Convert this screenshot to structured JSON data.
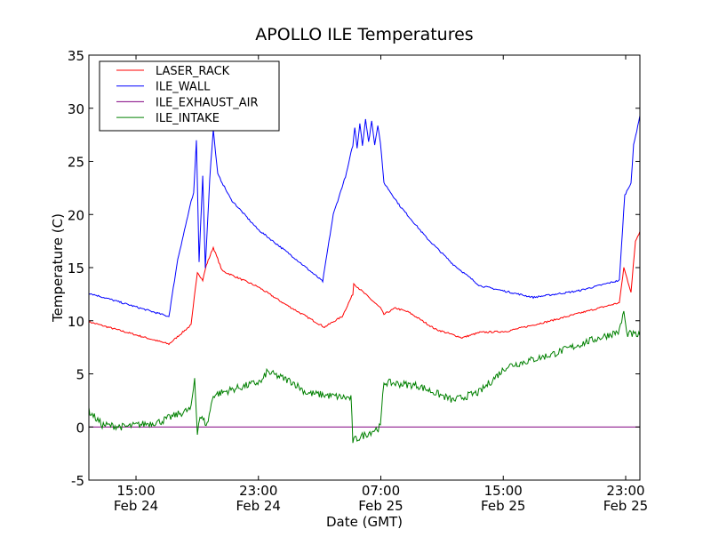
{
  "chart_data": {
    "type": "line",
    "title": "APOLLO ILE Temperatures",
    "xlabel": "Date (GMT)",
    "ylabel": "Temperature (C)",
    "x_units": "hours since Feb 24 00:00 GMT",
    "xlim": [
      11.92,
      47.93
    ],
    "ylim": [
      -5,
      35
    ],
    "yticks": [
      -5,
      0,
      5,
      10,
      15,
      20,
      25,
      30,
      35
    ],
    "ytick_labels": [
      "-5",
      "0",
      "5",
      "10",
      "15",
      "20",
      "25",
      "30",
      "35"
    ],
    "xticks": [
      15,
      23,
      31,
      39,
      47
    ],
    "xtick_labels": [
      {
        "time": "15:00",
        "date": "Feb 24"
      },
      {
        "time": "23:00",
        "date": "Feb 24"
      },
      {
        "time": "07:00",
        "date": "Feb 25"
      },
      {
        "time": "15:00",
        "date": "Feb 25"
      },
      {
        "time": "23:00",
        "date": "Feb 25"
      }
    ],
    "grid": false,
    "legend_position": "top-left",
    "series": [
      {
        "name": "LASER_RACK",
        "color": "#ff0000",
        "noise": 0.08,
        "points": [
          [
            11.92,
            9.9
          ],
          [
            17.15,
            7.8
          ],
          [
            18.6,
            9.6
          ],
          [
            19.01,
            14.6
          ],
          [
            19.36,
            13.8
          ],
          [
            19.59,
            15.2
          ],
          [
            20.05,
            16.9
          ],
          [
            20.63,
            14.7
          ],
          [
            22.96,
            13.2
          ],
          [
            24.7,
            11.6
          ],
          [
            27.31,
            9.4
          ],
          [
            28.47,
            10.4
          ],
          [
            29.17,
            12.5
          ],
          [
            29.23,
            13.5
          ],
          [
            30.97,
            11.2
          ],
          [
            31.2,
            10.6
          ],
          [
            31.96,
            11.2
          ],
          [
            32.83,
            10.8
          ],
          [
            34.57,
            9.2
          ],
          [
            36.31,
            8.4
          ],
          [
            37.47,
            8.9
          ],
          [
            39.22,
            9.0
          ],
          [
            42.12,
            10.0
          ],
          [
            46.59,
            11.7
          ],
          [
            46.88,
            15.0
          ],
          [
            47.35,
            12.7
          ],
          [
            47.64,
            17.5
          ],
          [
            47.93,
            18.4
          ]
        ]
      },
      {
        "name": "ILE_WALL",
        "color": "#0000ff",
        "noise": 0.08,
        "points": [
          [
            11.92,
            12.6
          ],
          [
            17.15,
            10.4
          ],
          [
            17.73,
            15.8
          ],
          [
            18.6,
            21.2
          ],
          [
            18.77,
            22.0
          ],
          [
            18.95,
            27.0
          ],
          [
            19.12,
            15.6
          ],
          [
            19.36,
            23.6
          ],
          [
            19.53,
            15.0
          ],
          [
            19.82,
            23.4
          ],
          [
            20.05,
            28.0
          ],
          [
            20.34,
            23.8
          ],
          [
            21.21,
            21.4
          ],
          [
            22.96,
            18.6
          ],
          [
            25.28,
            16.0
          ],
          [
            27.2,
            13.7
          ],
          [
            27.89,
            20.0
          ],
          [
            28.76,
            23.9
          ],
          [
            29.05,
            25.8
          ],
          [
            29.17,
            26.5
          ],
          [
            29.3,
            28.2
          ],
          [
            29.45,
            26.3
          ],
          [
            29.63,
            28.6
          ],
          [
            29.8,
            26.5
          ],
          [
            30.0,
            29.0
          ],
          [
            30.2,
            26.8
          ],
          [
            30.4,
            28.8
          ],
          [
            30.6,
            26.6
          ],
          [
            30.8,
            28.4
          ],
          [
            30.97,
            26.8
          ],
          [
            31.2,
            23.0
          ],
          [
            32.25,
            20.8
          ],
          [
            33.99,
            17.8
          ],
          [
            35.73,
            15.3
          ],
          [
            37.47,
            13.3
          ],
          [
            40.96,
            12.2
          ],
          [
            43.86,
            12.8
          ],
          [
            46.59,
            13.8
          ],
          [
            46.94,
            21.8
          ],
          [
            47.35,
            23.0
          ],
          [
            47.52,
            26.5
          ],
          [
            47.93,
            29.3
          ]
        ]
      },
      {
        "name": "ILE_EXHAUST_AIR",
        "color": "#800080",
        "noise": 0,
        "points": [
          [
            11.92,
            0
          ],
          [
            47.93,
            0
          ]
        ]
      },
      {
        "name": "ILE_INTAKE",
        "color": "#008000",
        "noise": 0.35,
        "points": [
          [
            11.92,
            1.5
          ],
          [
            12.79,
            0.2
          ],
          [
            14.25,
            0.0
          ],
          [
            16.57,
            0.5
          ],
          [
            18.6,
            1.7
          ],
          [
            18.83,
            4.6
          ],
          [
            19.01,
            -0.4
          ],
          [
            19.18,
            1.0
          ],
          [
            19.65,
            0.2
          ],
          [
            20.05,
            3.0
          ],
          [
            21.21,
            3.5
          ],
          [
            23.25,
            4.3
          ],
          [
            23.54,
            5.2
          ],
          [
            25.28,
            4.2
          ],
          [
            26.15,
            3.2
          ],
          [
            29.05,
            2.7
          ],
          [
            29.17,
            -1.3
          ],
          [
            30.97,
            0.0
          ],
          [
            31.2,
            4.2
          ],
          [
            33.41,
            3.9
          ],
          [
            35.73,
            2.5
          ],
          [
            37.47,
            3.3
          ],
          [
            39.22,
            5.7
          ],
          [
            42.12,
            6.8
          ],
          [
            44.44,
            8.0
          ],
          [
            46.59,
            9.0
          ],
          [
            46.88,
            10.9
          ],
          [
            47.06,
            8.8
          ],
          [
            47.93,
            8.6
          ]
        ]
      }
    ]
  }
}
